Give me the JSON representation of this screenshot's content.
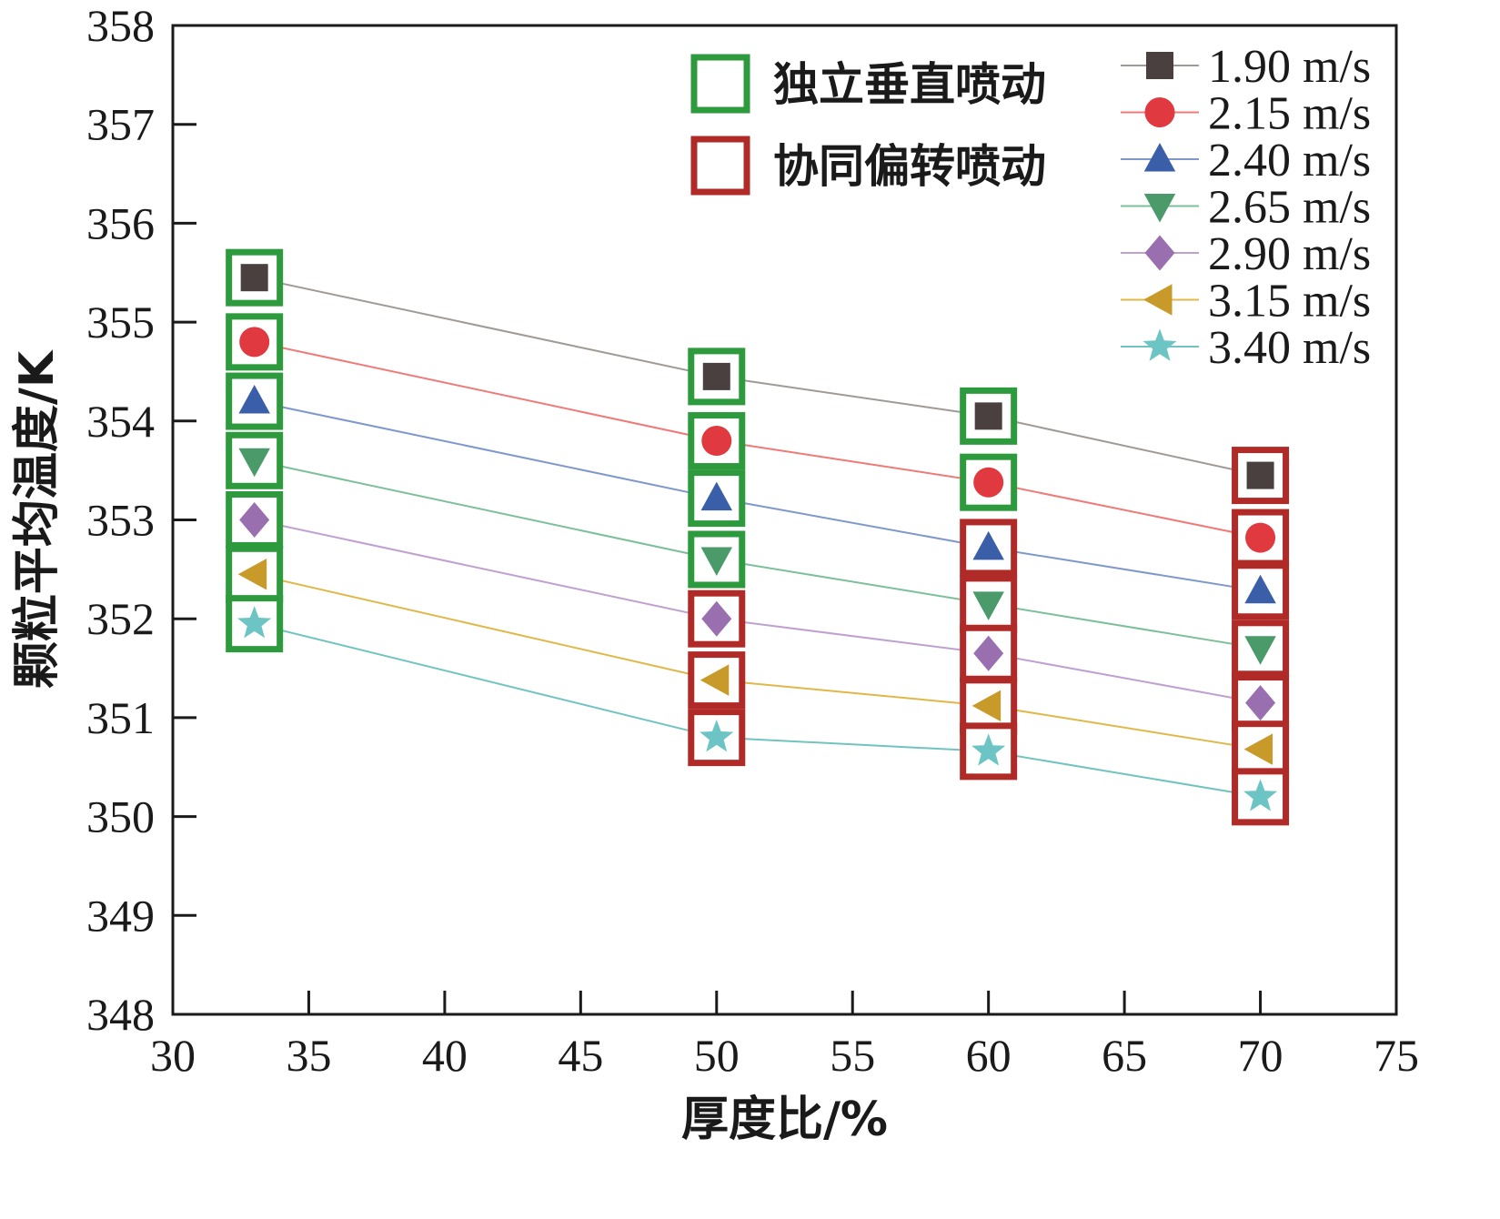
{
  "chart_data": {
    "type": "line",
    "title": "",
    "xlabel": "厚度比/%",
    "ylabel": "颗粒平均温度/K",
    "xlim": [
      30,
      75
    ],
    "ylim": [
      348,
      358
    ],
    "xticks": [
      30,
      35,
      40,
      45,
      50,
      55,
      60,
      65,
      70,
      75
    ],
    "yticks": [
      348,
      349,
      350,
      351,
      352,
      353,
      354,
      355,
      356,
      357,
      358
    ],
    "x": [
      33,
      50,
      60,
      70
    ],
    "series": [
      {
        "name": "1.90 m/s",
        "marker": "square",
        "color": "#4a4040",
        "line_color": "#a09a96",
        "values": [
          355.45,
          354.45,
          354.05,
          353.45
        ]
      },
      {
        "name": "2.15 m/s",
        "marker": "circle",
        "color": "#e0393f",
        "line_color": "#f07a78",
        "values": [
          354.8,
          353.8,
          353.38,
          352.82
        ]
      },
      {
        "name": "2.40 m/s",
        "marker": "triangle-up",
        "color": "#3a5fa8",
        "line_color": "#7f98cc",
        "values": [
          354.2,
          353.22,
          352.72,
          352.28
        ]
      },
      {
        "name": "2.65 m/s",
        "marker": "triangle-down",
        "color": "#4a9a6a",
        "line_color": "#7cc09a",
        "values": [
          353.6,
          352.6,
          352.15,
          351.7
        ]
      },
      {
        "name": "2.90 m/s",
        "marker": "diamond",
        "color": "#9a6fb0",
        "line_color": "#c0a0d0",
        "values": [
          353.0,
          352.0,
          351.65,
          351.15
        ]
      },
      {
        "name": "3.15 m/s",
        "marker": "triangle-left",
        "color": "#c89a2a",
        "line_color": "#e0b84a",
        "values": [
          352.45,
          351.38,
          351.12,
          350.68
        ]
      },
      {
        "name": "3.40 m/s",
        "marker": "star",
        "color": "#6cc4c4",
        "line_color": "#70c4c0",
        "values": [
          351.95,
          350.8,
          350.66,
          350.2
        ]
      }
    ],
    "box_groups": [
      {
        "name": "独立垂直喷动",
        "color": "#2e9a3e"
      },
      {
        "name": "协同偏转喷动",
        "color": "#b02a28"
      }
    ],
    "box_assignment": [
      [
        "独立垂直喷动",
        "独立垂直喷动",
        "独立垂直喷动",
        "协同偏转喷动"
      ],
      [
        "独立垂直喷动",
        "独立垂直喷动",
        "独立垂直喷动",
        "协同偏转喷动"
      ],
      [
        "独立垂直喷动",
        "独立垂直喷动",
        "协同偏转喷动",
        "协同偏转喷动"
      ],
      [
        "独立垂直喷动",
        "独立垂直喷动",
        "协同偏转喷动",
        "协同偏转喷动"
      ],
      [
        "独立垂直喷动",
        "协同偏转喷动",
        "协同偏转喷动",
        "协同偏转喷动"
      ],
      [
        "独立垂直喷动",
        "协同偏转喷动",
        "协同偏转喷动",
        "协同偏转喷动"
      ],
      [
        "独立垂直喷动",
        "协同偏转喷动",
        "协同偏转喷动",
        "协同偏转喷动"
      ]
    ]
  }
}
